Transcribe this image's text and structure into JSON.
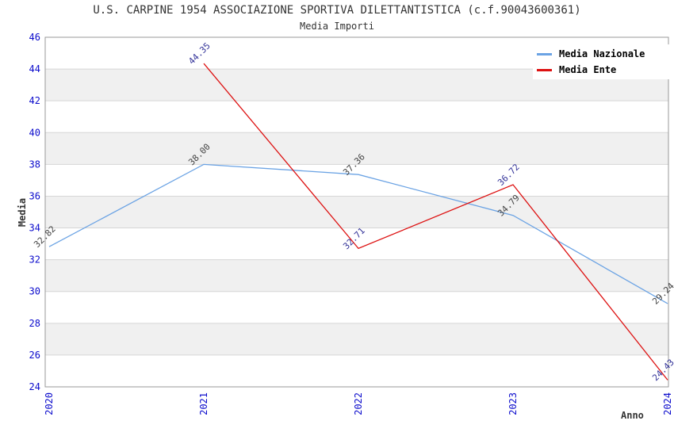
{
  "title": "U.S. CARPINE 1954 ASSOCIAZIONE SPORTIVA DILETTANTISTICA (c.f.90043600361)",
  "subtitle": "Media Importi",
  "legend": {
    "items": [
      {
        "label": "Media Nazionale",
        "color": "#6BA3E4"
      },
      {
        "label": "Media Ente",
        "color": "#DD1111"
      }
    ]
  },
  "chart_data": {
    "type": "line",
    "title": "U.S. CARPINE 1954 ASSOCIAZIONE SPORTIVA DILETTANTISTICA (c.f.90043600361)",
    "subtitle": "Media Importi",
    "x": [
      2020,
      2021,
      2022,
      2023,
      2024
    ],
    "series": [
      {
        "name": "Media Nazionale",
        "color": "#6BA3E4",
        "label_color": "#444444",
        "values": [
          32.82,
          38.0,
          37.36,
          34.79,
          29.24
        ]
      },
      {
        "name": "Media Ente",
        "color": "#DD1111",
        "label_color": "#333399",
        "values": [
          null,
          44.35,
          32.71,
          36.72,
          24.43
        ]
      }
    ],
    "xlabel": "Anno",
    "ylabel": "Media",
    "ylim": [
      24,
      46
    ],
    "ytick_step": 2,
    "grid": true,
    "legend_position": "top-right",
    "band_colors": [
      "#FFFFFF",
      "#F0F0F0"
    ],
    "gridline_color": "#D6D6D6",
    "border_color": "#999999",
    "tick_color": "#0B0BCC",
    "point_label_rotation": -45,
    "xtick_rotation": -90
  }
}
